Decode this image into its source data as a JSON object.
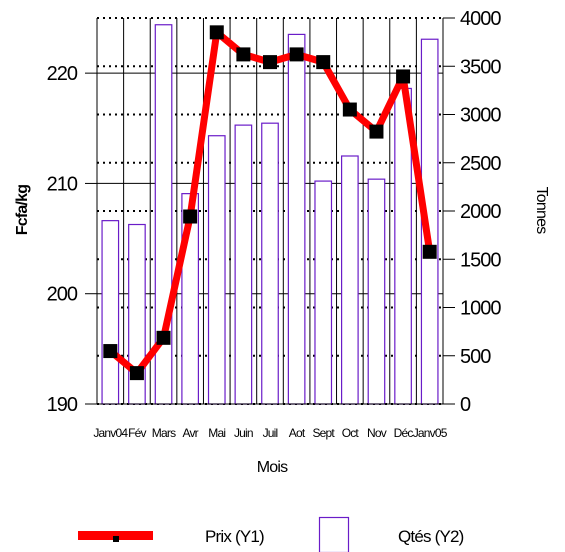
{
  "chart_data": {
    "type": "bar+line",
    "categories": [
      "Janv04",
      "Fév",
      "Mars",
      "Avr",
      "Mai",
      "Juin",
      "Juil",
      "Aot",
      "Sept",
      "Oct",
      "Nov",
      "Déc",
      "Janv05"
    ],
    "xlabel": "Mois",
    "ylabel_left": "Fcfa/kg",
    "ylabel_right": "Tonnes",
    "ylim_left": [
      190,
      225
    ],
    "yticks_left": [
      190,
      200,
      210,
      220
    ],
    "ylim_right": [
      0,
      4000
    ],
    "yticks_right": [
      0,
      500,
      1000,
      1500,
      2000,
      2500,
      3000,
      3500,
      4000
    ],
    "grid": true,
    "legend_position": "bottom",
    "series": [
      {
        "name": "Prix (Y1)",
        "kind": "line",
        "axis": "left",
        "color": "#ff0000",
        "marker_color": "#000000",
        "values": [
          194.8,
          192.8,
          196.0,
          207.0,
          223.7,
          221.7,
          221.0,
          221.7,
          221.0,
          216.7,
          214.7,
          219.7,
          203.8
        ]
      },
      {
        "name": "Qtés (Y2)",
        "kind": "bar",
        "axis": "right",
        "color": "#6a1cc8",
        "values": [
          1900,
          1860,
          3930,
          2180,
          2780,
          2890,
          2910,
          3830,
          2310,
          2570,
          2330,
          3270,
          3780
        ]
      }
    ]
  }
}
